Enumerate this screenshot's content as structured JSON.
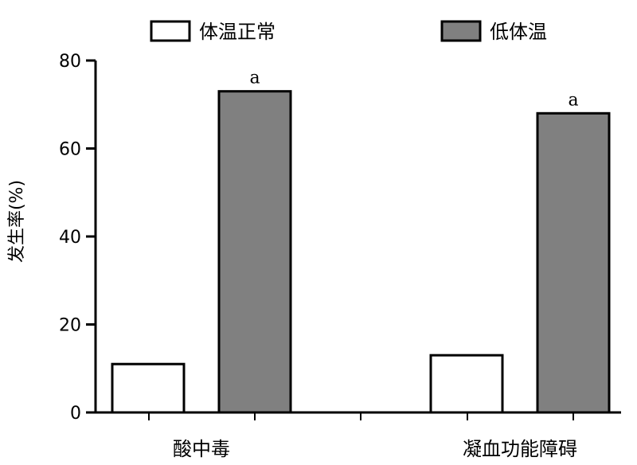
{
  "chart_data": {
    "type": "bar",
    "title": "",
    "xlabel": "",
    "ylabel": "发生率(%)",
    "ylim": [
      0,
      80
    ],
    "yticks": [
      0,
      20,
      40,
      60,
      80
    ],
    "grid": false,
    "legend_position": "top",
    "categories": [
      "酸中毒",
      "凝血功能障碍"
    ],
    "series": [
      {
        "name": "体温正常",
        "values": [
          11,
          13
        ],
        "color": "#ffffff",
        "annotations": [
          "",
          ""
        ]
      },
      {
        "name": "低体温",
        "values": [
          73,
          68
        ],
        "color": "#808080",
        "annotations": [
          "a",
          "a"
        ]
      }
    ]
  }
}
